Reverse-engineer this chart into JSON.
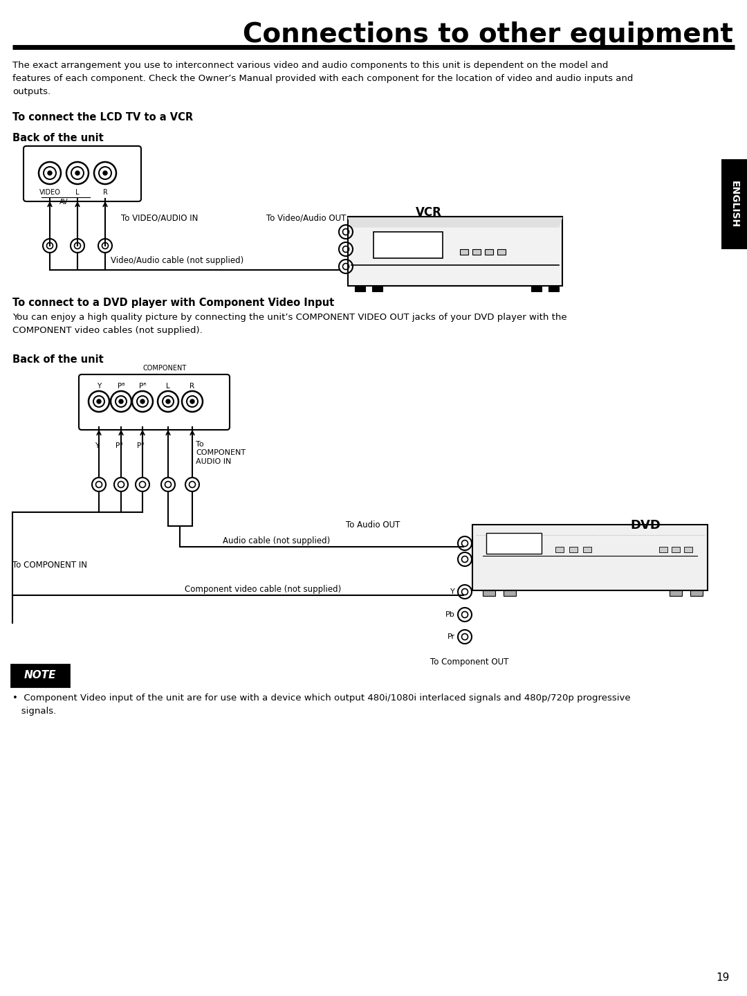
{
  "title": "Connections to other equipment",
  "intro_text": "The exact arrangement you use to interconnect various video and audio components to this unit is dependent on the model and\nfeatures of each component. Check the Owner’s Manual provided with each component for the location of video and audio inputs and\noutputs.",
  "section1_title": "To connect the LCD TV to a VCR",
  "back_unit": "Back of the unit",
  "vcr_label": "VCR",
  "to_video_audio_in": "To VIDEO/AUDIO IN",
  "to_video_audio_out": "To Video/Audio OUT",
  "video_audio_cable": "Video/Audio cable (not supplied)",
  "section2_title": "To connect to a DVD player with Component Video Input",
  "section2_body": "You can enjoy a high quality picture by connecting the unit’s COMPONENT VIDEO OUT jacks of your DVD player with the\nCOMPONENT video cables (not supplied).",
  "dvd_label": "DVD",
  "to_component_in": "To COMPONENT IN",
  "to_component_audio_in": "To\nCOMPONENT\nAUDIO IN",
  "audio_cable": "Audio cable (not supplied)",
  "component_video_cable": "Component video cable (not supplied)",
  "to_audio_out": "To Audio OUT",
  "to_component_out": "To Component OUT",
  "note_label": "NOTE",
  "note_text": "•  Component Video input of the unit are for use with a device which output 480i/1080i interlaced signals and 480p/720p progressive\n   signals.",
  "english_label": "ENGLISH",
  "page_number": "19",
  "bg_color": "#ffffff",
  "text_color": "#000000"
}
